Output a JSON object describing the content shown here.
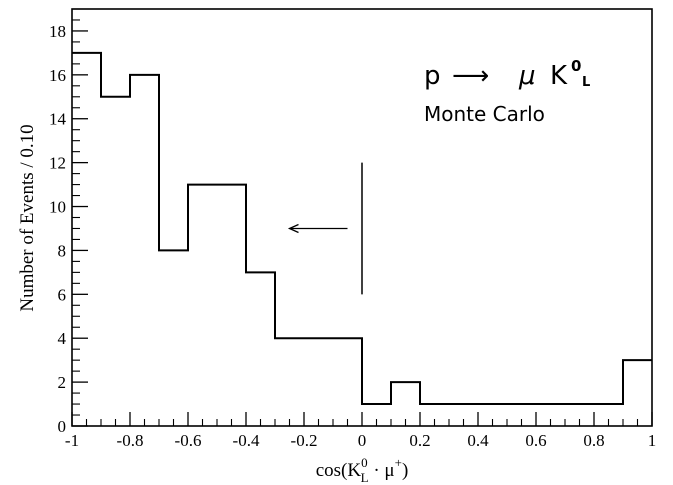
{
  "chart_data": {
    "type": "histogram",
    "ylabel": "Number of Events / 0.10",
    "xlabel": {
      "prefix": "cos(K",
      "sup": "0",
      "sub": "L",
      "middle": " · μ",
      "sup2": "+",
      "suffix": ")"
    },
    "xlim": [
      -1,
      1
    ],
    "ylim": [
      0,
      19
    ],
    "x_ticks": [
      -1,
      -0.8,
      -0.6,
      -0.4,
      -0.2,
      0,
      0.2,
      0.4,
      0.6,
      0.8,
      1
    ],
    "x_tick_labels": [
      "-1",
      "-0.8",
      "-0.6",
      "-0.4",
      "-0.2",
      "0",
      "0.2",
      "0.4",
      "0.6",
      "0.8",
      "1"
    ],
    "y_ticks": [
      0,
      2,
      4,
      6,
      8,
      10,
      12,
      14,
      16,
      18
    ],
    "y_tick_labels": [
      "0",
      "2",
      "4",
      "6",
      "8",
      "10",
      "12",
      "14",
      "16",
      "18"
    ],
    "bin_edges": [
      -1,
      -0.9,
      -0.8,
      -0.7,
      -0.6,
      -0.5,
      -0.4,
      -0.3,
      -0.2,
      -0.1,
      0,
      0.1,
      0.2,
      0.3,
      0.4,
      0.5,
      0.6,
      0.7,
      0.8,
      0.9,
      1
    ],
    "values": [
      17,
      15,
      16,
      8,
      11,
      11,
      7,
      4,
      4,
      4,
      1,
      2,
      1,
      1,
      1,
      1,
      1,
      1,
      1,
      3
    ],
    "cut": {
      "x": 0,
      "y_range": [
        6,
        12
      ],
      "arrow_from": -0.05,
      "arrow_to": -0.25,
      "arrow_y": 9
    },
    "annotation": {
      "reaction_left": "p",
      "reaction_arrow": "⟶",
      "reaction_mu": "μ",
      "reaction_k": "K",
      "reaction_k_sup": "0",
      "reaction_k_sub": "L",
      "subtitle": "Monte Carlo"
    }
  }
}
